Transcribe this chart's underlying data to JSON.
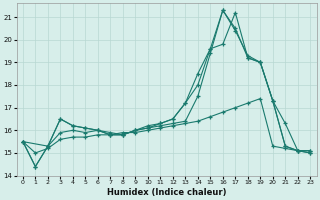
{
  "xlabel": "Humidex (Indice chaleur)",
  "background_color": "#d7eeea",
  "grid_color": "#b8d8d2",
  "line_color": "#1a7a6e",
  "xlim": [
    -0.5,
    23.5
  ],
  "ylim": [
    14,
    21.6
  ],
  "yticks": [
    14,
    15,
    16,
    17,
    18,
    19,
    20,
    21
  ],
  "xticks": [
    0,
    1,
    2,
    3,
    4,
    5,
    6,
    7,
    8,
    9,
    10,
    11,
    12,
    13,
    14,
    15,
    16,
    17,
    18,
    19,
    20,
    21,
    22,
    23
  ],
  "series": [
    {
      "x": [
        0,
        1,
        2,
        3,
        4,
        5,
        6,
        7,
        8,
        9,
        10,
        11,
        12,
        13,
        14,
        15,
        16,
        17,
        18,
        19,
        20,
        21,
        22,
        23
      ],
      "y": [
        15.5,
        14.4,
        15.3,
        16.5,
        16.2,
        16.1,
        16.0,
        15.9,
        15.8,
        16.0,
        16.1,
        16.2,
        16.3,
        16.4,
        17.5,
        19.4,
        21.3,
        20.4,
        19.3,
        19.0,
        17.3,
        16.3,
        15.1,
        15.1
      ]
    },
    {
      "x": [
        0,
        1,
        2,
        3,
        4,
        5,
        6,
        7,
        8,
        9,
        10,
        11,
        12,
        13,
        14,
        15,
        16,
        17,
        18,
        19,
        20,
        21,
        22,
        23
      ],
      "y": [
        15.5,
        14.4,
        15.3,
        16.5,
        16.2,
        16.1,
        16.0,
        15.8,
        15.8,
        16.0,
        16.2,
        16.3,
        16.5,
        17.2,
        18.0,
        19.6,
        21.3,
        20.5,
        19.2,
        19.0,
        17.3,
        15.3,
        15.1,
        15.0
      ]
    },
    {
      "x": [
        0,
        1,
        2,
        3,
        4,
        5,
        6,
        7,
        8,
        9,
        10,
        11,
        12,
        13,
        14,
        15,
        16,
        17,
        18,
        19,
        20,
        21,
        22,
        23
      ],
      "y": [
        15.5,
        15.0,
        15.2,
        15.6,
        15.7,
        15.7,
        15.8,
        15.8,
        15.9,
        15.9,
        16.0,
        16.1,
        16.2,
        16.3,
        16.4,
        16.6,
        16.8,
        17.0,
        17.2,
        17.4,
        15.3,
        15.2,
        15.1,
        15.1
      ]
    },
    {
      "x": [
        0,
        2,
        3,
        4,
        5,
        6,
        7,
        8,
        9,
        10,
        11,
        12,
        13,
        14,
        15,
        16,
        17,
        18,
        19,
        20,
        21,
        22,
        23
      ],
      "y": [
        15.5,
        15.3,
        15.9,
        16.0,
        15.9,
        16.0,
        15.8,
        15.8,
        16.0,
        16.1,
        16.3,
        16.5,
        17.2,
        18.5,
        19.6,
        19.8,
        21.2,
        19.2,
        19.0,
        17.3,
        15.3,
        15.1,
        15.0
      ]
    }
  ]
}
